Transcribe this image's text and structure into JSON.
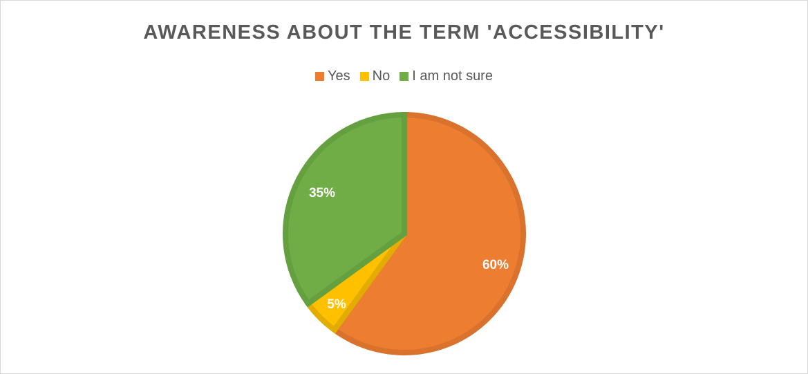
{
  "chart_data": {
    "type": "pie",
    "title": "AWARENESS ABOUT THE TERM 'ACCESSIBILITY'",
    "legend_placement": "top",
    "categories": [
      "Yes",
      "No",
      "I am not sure"
    ],
    "values": [
      60,
      5,
      35
    ],
    "data_labels": [
      "60%",
      "5%",
      "35%"
    ],
    "colors": [
      "#ED7D31",
      "#FFC000",
      "#70AD47"
    ],
    "border_colors": [
      "#D9722C",
      "#E2AC00",
      "#64A03F"
    ]
  }
}
